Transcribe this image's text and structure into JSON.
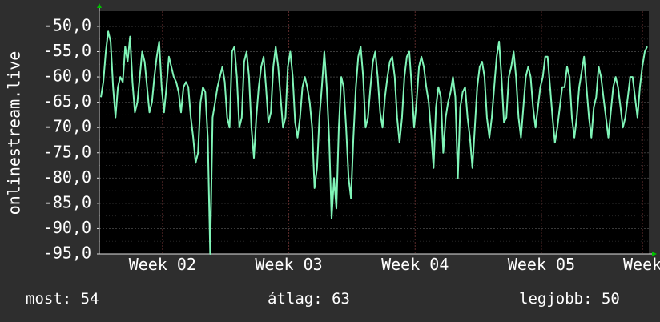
{
  "ylabel": "onlinestream.live",
  "chart_data": {
    "type": "line",
    "ylabel": "onlinestream.live",
    "ylim": [
      -95,
      -47
    ],
    "yticks": [
      "-50,0",
      "-55,0",
      "-60,0",
      "-65,0",
      "-70,0",
      "-75,0",
      "-80,0",
      "-85,0",
      "-90,0",
      "-95,0"
    ],
    "ytick_values": [
      -50,
      -55,
      -60,
      -65,
      -70,
      -75,
      -80,
      -85,
      -90,
      -95
    ],
    "xlim": [
      0,
      4.35
    ],
    "xticks": [
      "Week 02",
      "Week 03",
      "Week 04",
      "Week 05",
      "Week"
    ],
    "xtick_values": [
      0.5,
      1.5,
      2.5,
      3.5,
      4.3
    ],
    "grid": true,
    "colors": {
      "line": "#80f5b8",
      "background": "#000000",
      "grid": "#3a3a3a",
      "axis": "#e0e0e0",
      "arrow": "#00c000"
    },
    "series": [
      {
        "values": [
          -64,
          -61,
          -55,
          -51,
          -53,
          -62,
          -68,
          -62,
          -60,
          -61,
          -54,
          -57,
          -52,
          -61,
          -67,
          -65,
          -60,
          -55,
          -57,
          -62,
          -67,
          -65,
          -60,
          -56,
          -53,
          -62,
          -67,
          -62,
          -56,
          -58,
          -60,
          -61,
          -63,
          -67,
          -62,
          -61,
          -62,
          -68,
          -72,
          -77,
          -75,
          -65,
          -62,
          -63,
          -72,
          -95,
          -68,
          -65,
          -62,
          -60,
          -58,
          -61,
          -68,
          -70,
          -55,
          -54,
          -60,
          -70,
          -68,
          -57,
          -55,
          -60,
          -70,
          -76,
          -68,
          -62,
          -58,
          -56,
          -62,
          -69,
          -67,
          -58,
          -54,
          -58,
          -64,
          -70,
          -68,
          -58,
          -55,
          -60,
          -69,
          -72,
          -68,
          -62,
          -60,
          -62,
          -65,
          -70,
          -82,
          -78,
          -68,
          -62,
          -55,
          -62,
          -72,
          -88,
          -80,
          -86,
          -70,
          -60,
          -62,
          -70,
          -80,
          -84,
          -72,
          -62,
          -56,
          -54,
          -60,
          -70,
          -68,
          -62,
          -57,
          -55,
          -60,
          -67,
          -70,
          -64,
          -60,
          -57,
          -56,
          -60,
          -68,
          -73,
          -68,
          -60,
          -56,
          -55,
          -62,
          -70,
          -65,
          -58,
          -56,
          -58,
          -62,
          -65,
          -71,
          -78,
          -66,
          -62,
          -64,
          -75,
          -68,
          -65,
          -63,
          -60,
          -64,
          -80,
          -66,
          -63,
          -62,
          -68,
          -72,
          -78,
          -70,
          -62,
          -58,
          -57,
          -60,
          -68,
          -72,
          -68,
          -62,
          -56,
          -53,
          -60,
          -69,
          -68,
          -60,
          -58,
          -55,
          -60,
          -68,
          -72,
          -66,
          -60,
          -58,
          -60,
          -66,
          -70,
          -66,
          -62,
          -60,
          -56,
          -56,
          -62,
          -68,
          -73,
          -70,
          -66,
          -62,
          -62,
          -58,
          -60,
          -68,
          -72,
          -68,
          -62,
          -59,
          -56,
          -62,
          -68,
          -72,
          -66,
          -64,
          -58,
          -60,
          -64,
          -68,
          -72,
          -67,
          -62,
          -60,
          -62,
          -66,
          -70,
          -68,
          -64,
          -60,
          -60,
          -64,
          -68,
          -62,
          -58,
          -55,
          -54
        ]
      }
    ]
  },
  "stats": {
    "current": "most: 54",
    "average": "átlag: 63",
    "best": "legjobb: 50"
  }
}
